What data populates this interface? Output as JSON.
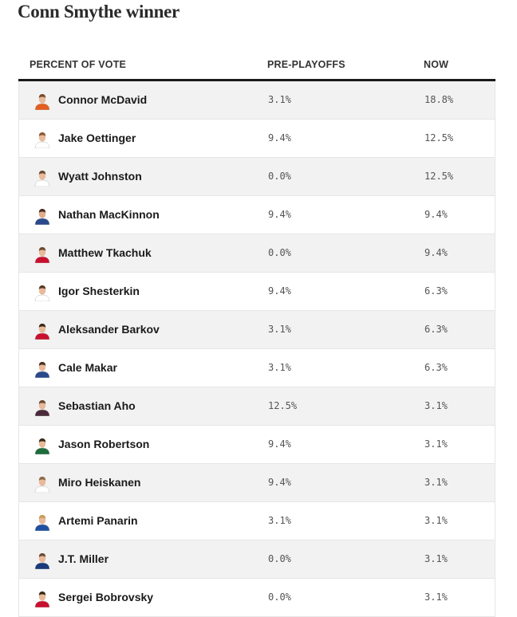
{
  "title": "Conn Smythe winner",
  "table": {
    "columns": [
      "PERCENT OF VOTE",
      "PRE-PLAYOFFS",
      "NOW"
    ],
    "rows": [
      {
        "name": "Connor McDavid",
        "pre": "3.1%",
        "now": "18.8%",
        "jersey": "#e35d1f",
        "skin": "#e8b99a",
        "hair": "#7a4a2a"
      },
      {
        "name": "Jake Oettinger",
        "pre": "9.4%",
        "now": "12.5%",
        "jersey": "#ffffff",
        "skin": "#e8b99a",
        "hair": "#8a5a35"
      },
      {
        "name": "Wyatt Johnston",
        "pre": "0.0%",
        "now": "12.5%",
        "jersey": "#ffffff",
        "skin": "#e8b99a",
        "hair": "#6b4a30"
      },
      {
        "name": "Nathan MacKinnon",
        "pre": "9.4%",
        "now": "9.4%",
        "jersey": "#2a4a8c",
        "skin": "#e0ad8c",
        "hair": "#4a3020"
      },
      {
        "name": "Matthew Tkachuk",
        "pre": "0.0%",
        "now": "9.4%",
        "jersey": "#c8102e",
        "skin": "#e8b99a",
        "hair": "#6b4a30"
      },
      {
        "name": "Igor Shesterkin",
        "pre": "9.4%",
        "now": "6.3%",
        "jersey": "#ffffff",
        "skin": "#e8b99a",
        "hair": "#5a3a25"
      },
      {
        "name": "Aleksander Barkov",
        "pre": "3.1%",
        "now": "6.3%",
        "jersey": "#c8102e",
        "skin": "#e8b99a",
        "hair": "#3a2a1a"
      },
      {
        "name": "Cale Makar",
        "pre": "3.1%",
        "now": "6.3%",
        "jersey": "#2a4a8c",
        "skin": "#e8b99a",
        "hair": "#4a3020"
      },
      {
        "name": "Sebastian Aho",
        "pre": "12.5%",
        "now": "3.1%",
        "jersey": "#4a2a3a",
        "skin": "#e8b99a",
        "hair": "#6b4a30"
      },
      {
        "name": "Jason Robertson",
        "pre": "9.4%",
        "now": "3.1%",
        "jersey": "#1e6b3c",
        "skin": "#e8b99a",
        "hair": "#3a2a1a"
      },
      {
        "name": "Miro Heiskanen",
        "pre": "9.4%",
        "now": "3.1%",
        "jersey": "#ffffff",
        "skin": "#e8b99a",
        "hair": "#8a6a45"
      },
      {
        "name": "Artemi Panarin",
        "pre": "3.1%",
        "now": "3.1%",
        "jersey": "#1f4fa0",
        "skin": "#e8b99a",
        "hair": "#c89a5a"
      },
      {
        "name": "J.T. Miller",
        "pre": "0.0%",
        "now": "3.1%",
        "jersey": "#1a3a7a",
        "skin": "#e8b99a",
        "hair": "#6b4a30"
      },
      {
        "name": "Sergei Bobrovsky",
        "pre": "0.0%",
        "now": "3.1%",
        "jersey": "#c8102e",
        "skin": "#e8b99a",
        "hair": "#3a2a1a"
      }
    ]
  },
  "chart_data": {
    "type": "table",
    "title": "Conn Smythe winner",
    "columns": [
      "PERCENT OF VOTE",
      "PRE-PLAYOFFS",
      "NOW"
    ],
    "categories": [
      "Connor McDavid",
      "Jake Oettinger",
      "Wyatt Johnston",
      "Nathan MacKinnon",
      "Matthew Tkachuk",
      "Igor Shesterkin",
      "Aleksander Barkov",
      "Cale Makar",
      "Sebastian Aho",
      "Jason Robertson",
      "Miro Heiskanen",
      "Artemi Panarin",
      "J.T. Miller",
      "Sergei Bobrovsky"
    ],
    "series": [
      {
        "name": "PRE-PLAYOFFS",
        "values": [
          3.1,
          9.4,
          0.0,
          9.4,
          0.0,
          9.4,
          3.1,
          3.1,
          12.5,
          9.4,
          9.4,
          3.1,
          0.0,
          0.0
        ]
      },
      {
        "name": "NOW",
        "values": [
          18.8,
          12.5,
          12.5,
          9.4,
          9.4,
          6.3,
          6.3,
          6.3,
          3.1,
          3.1,
          3.1,
          3.1,
          3.1,
          3.1
        ]
      }
    ]
  }
}
